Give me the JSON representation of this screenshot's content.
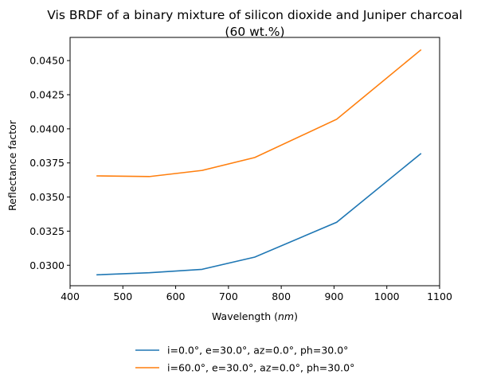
{
  "chart_data": {
    "type": "line",
    "title_line1": "Vis BRDF of a binary mixture of silicon dioxide and Juniper charcoal",
    "title_line2": "(60 wt.%)",
    "xlabel_text": "Wavelength (",
    "xlabel_unit": "nm",
    "xlabel_close": ")",
    "ylabel": "Reflectance factor",
    "xlim": [
      400,
      1100
    ],
    "ylim": [
      0.0285,
      0.0467
    ],
    "xticks": [
      400,
      500,
      600,
      700,
      800,
      900,
      1000,
      1100
    ],
    "xtick_labels": [
      "400",
      "500",
      "600",
      "700",
      "800",
      "900",
      "1000",
      "1100"
    ],
    "yticks": [
      0.03,
      0.0325,
      0.035,
      0.0375,
      0.04,
      0.0425,
      0.045
    ],
    "ytick_labels": [
      "0.0300",
      "0.0325",
      "0.0350",
      "0.0375",
      "0.0400",
      "0.0425",
      "0.0450"
    ],
    "grid": false,
    "legend_position": "below-center",
    "series": [
      {
        "name": "i=0.0°, e=30.0°, az=0.0°, ph=30.0°",
        "color": "#1f77b4",
        "x": [
          450,
          550,
          650,
          750,
          905,
          1065
        ],
        "y": [
          0.0293,
          0.02945,
          0.0297,
          0.0306,
          0.03315,
          0.0382
        ]
      },
      {
        "name": "i=60.0°, e=30.0°, az=0.0°, ph=30.0°",
        "color": "#ff7f0e",
        "x": [
          450,
          550,
          650,
          750,
          905,
          1065
        ],
        "y": [
          0.03655,
          0.0365,
          0.03695,
          0.0379,
          0.0407,
          0.0458
        ]
      }
    ]
  }
}
